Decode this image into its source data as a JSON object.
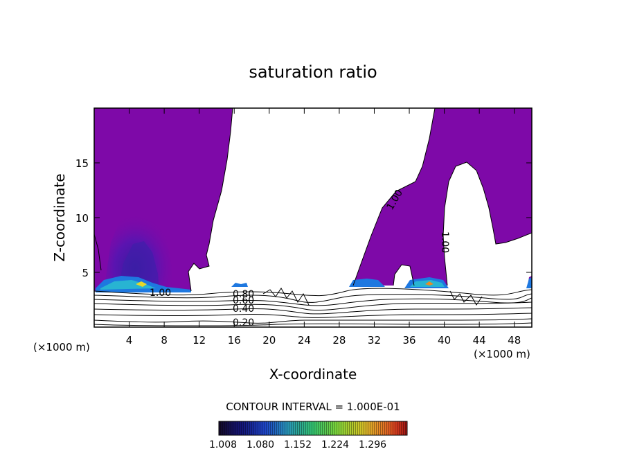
{
  "chart_data": {
    "type": "contour",
    "title": "saturation ratio",
    "xlabel": "X-coordinate",
    "ylabel": "Z-coordinate",
    "x_unit_left": "(×1000 m)",
    "x_unit_right": "(×1000 m)",
    "xlim": [
      0,
      50
    ],
    "ylim": [
      0,
      20
    ],
    "x_ticks": [
      4,
      8,
      12,
      16,
      20,
      24,
      28,
      32,
      36,
      40,
      44,
      48
    ],
    "y_ticks": [
      5,
      10,
      15
    ],
    "contour_interval_text": "CONTOUR INTERVAL = 1.000E-01",
    "contour_labels": [
      {
        "text": "1.00",
        "x": 7.8,
        "z": 3.1
      },
      {
        "text": "0.80",
        "x": 17.2,
        "z": 2.9
      },
      {
        "text": "0.60",
        "x": 17.2,
        "z": 2.2
      },
      {
        "text": "0.40",
        "x": 17.2,
        "z": 1.6
      },
      {
        "text": "0.20",
        "x": 17.2,
        "z": 0.4
      },
      {
        "text": "1.00",
        "x": 33.2,
        "z": 11.4
      },
      {
        "text": "1.00",
        "x": 40.0,
        "z": 7.6
      }
    ],
    "colorbar": {
      "tick_labels": [
        "1.008",
        "1.080",
        "1.152",
        "1.224",
        "1.296"
      ],
      "colors": [
        "#1a0a2e",
        "#1a1a8c",
        "#1e50c8",
        "#28a0b4",
        "#3cc878",
        "#78dc3c",
        "#c8d828",
        "#f0a020",
        "#e85020",
        "#b01818"
      ]
    },
    "fill_color": "#7e09a8"
  }
}
